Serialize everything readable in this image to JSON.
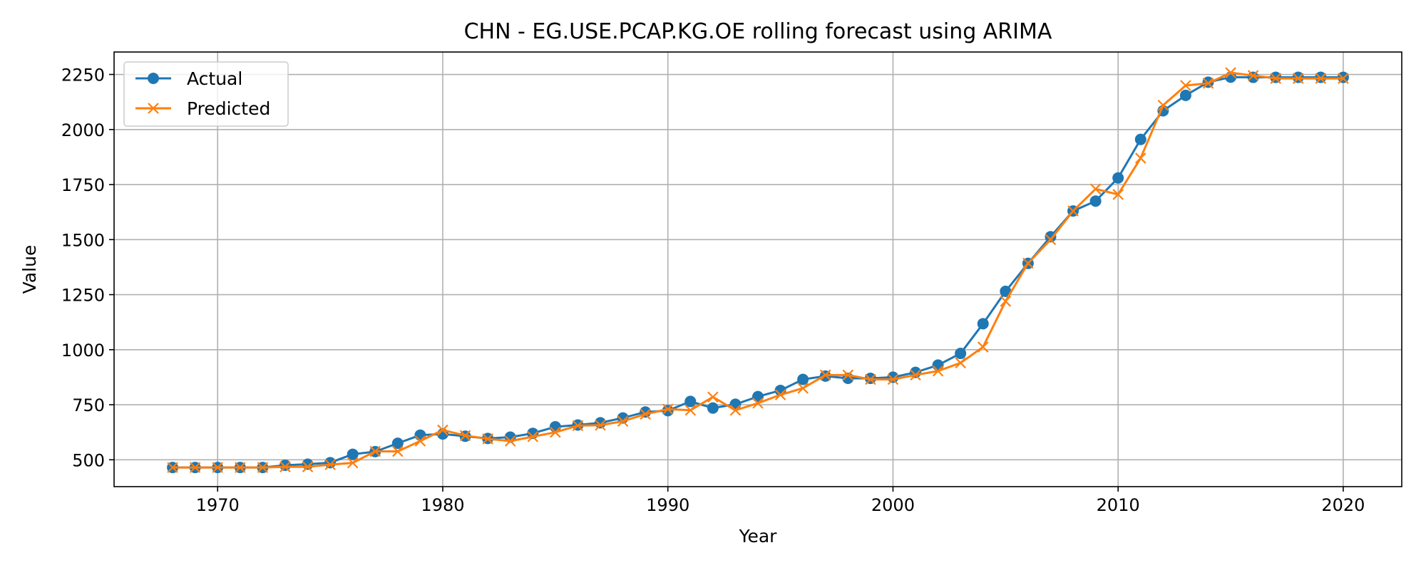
{
  "colors": {
    "actual": "#1f77b4",
    "predicted": "#ff7f0e",
    "grid": "#b0b0b0",
    "axis": "#000000"
  },
  "chart_data": {
    "type": "line",
    "title": "CHN - EG.USE.PCAP.KG.OE rolling forecast using ARIMA",
    "xlabel": "Year",
    "ylabel": "Value",
    "xlim": [
      1965.4,
      2022.6
    ],
    "ylim": [
      378,
      2352
    ],
    "xticks": [
      1970,
      1980,
      1990,
      2000,
      2010,
      2020
    ],
    "yticks": [
      500,
      750,
      1000,
      1250,
      1500,
      1750,
      2000,
      2250
    ],
    "grid": true,
    "legend_position": "upper-left",
    "x": [
      1968,
      1969,
      1970,
      1971,
      1972,
      1973,
      1974,
      1975,
      1976,
      1977,
      1978,
      1979,
      1980,
      1981,
      1982,
      1983,
      1984,
      1985,
      1986,
      1987,
      1988,
      1989,
      1990,
      1991,
      1992,
      1993,
      1994,
      1995,
      1996,
      1997,
      1998,
      1999,
      2000,
      2001,
      2002,
      2003,
      2004,
      2005,
      2006,
      2007,
      2008,
      2009,
      2010,
      2011,
      2012,
      2013,
      2014,
      2015,
      2016,
      2017,
      2018,
      2019,
      2020
    ],
    "series": [
      {
        "name": "Actual",
        "marker": "circle",
        "values": [
          465,
          465,
          465,
          465,
          465,
          475,
          480,
          487,
          525,
          537,
          575,
          612,
          617,
          607,
          597,
          603,
          620,
          650,
          658,
          668,
          690,
          717,
          723,
          765,
          735,
          752,
          787,
          815,
          865,
          880,
          870,
          870,
          875,
          897,
          930,
          983,
          1118,
          1265,
          1392,
          1513,
          1630,
          1675,
          1780,
          1955,
          2085,
          2155,
          2215,
          2238,
          2237,
          2237,
          2237,
          2237,
          2237
        ]
      },
      {
        "name": "Predicted",
        "marker": "x",
        "values": [
          465,
          465,
          465,
          465,
          465,
          468,
          468,
          478,
          486,
          538,
          538,
          585,
          635,
          610,
          595,
          585,
          605,
          625,
          655,
          657,
          675,
          707,
          730,
          725,
          785,
          725,
          757,
          795,
          825,
          885,
          885,
          865,
          865,
          885,
          903,
          940,
          1012,
          1220,
          1393,
          1500,
          1630,
          1730,
          1705,
          1870,
          2110,
          2200,
          2210,
          2258,
          2245,
          2232,
          2232,
          2232,
          2232
        ]
      }
    ]
  }
}
